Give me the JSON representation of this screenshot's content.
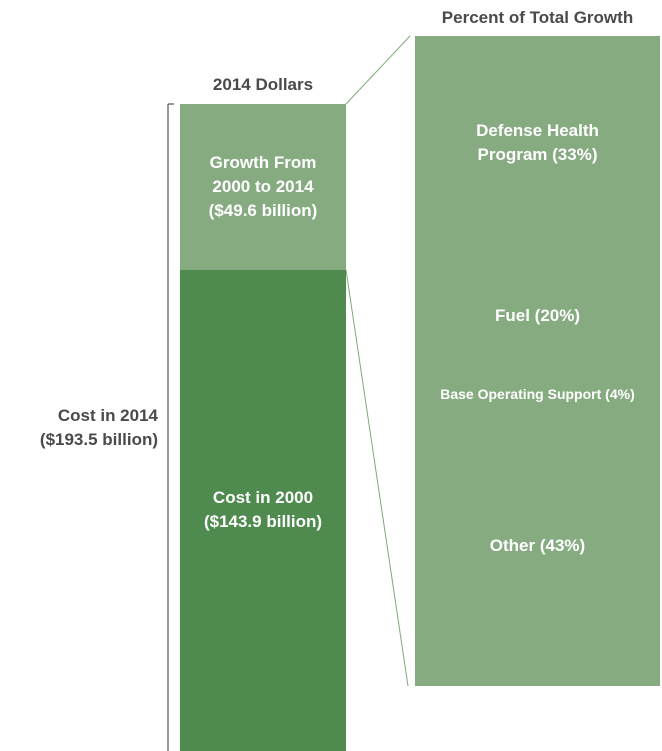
{
  "chart_data": [
    {
      "type": "stacked_bar",
      "title": "2014 Dollars",
      "series": [
        {
          "name": "Cost in 2000",
          "color": "#4f8a4f",
          "values": [
            143.9
          ],
          "value_labels": [
            "($143.9 billion)"
          ]
        },
        {
          "name": "Growth From 2000 to 2014",
          "color": "#86ab81",
          "values": [
            49.6
          ],
          "value_labels": [
            "($49.6 billion)"
          ]
        }
      ],
      "total": {
        "name": "Cost in 2014",
        "value": 193.5,
        "label": "($193.5 billion)"
      },
      "ylim": [
        0,
        193.5
      ]
    },
    {
      "type": "stacked_bar",
      "title": "Percent of Total Growth",
      "series": [
        {
          "name": "Other",
          "color": "#86ab81",
          "values": [
            43
          ],
          "value_labels": [
            "(43%)"
          ]
        },
        {
          "name": "Base Operating Support",
          "color": "#86ab81",
          "values": [
            4
          ],
          "value_labels": [
            "(4%)"
          ]
        },
        {
          "name": "Fuel",
          "color": "#86ab81",
          "values": [
            20
          ],
          "value_labels": [
            "(20%)"
          ]
        },
        {
          "name": "Defense Health Program",
          "color": "#86ab81",
          "values": [
            33
          ],
          "value_labels": [
            "(33%)"
          ]
        }
      ],
      "ylim": [
        0,
        100
      ]
    }
  ]
}
